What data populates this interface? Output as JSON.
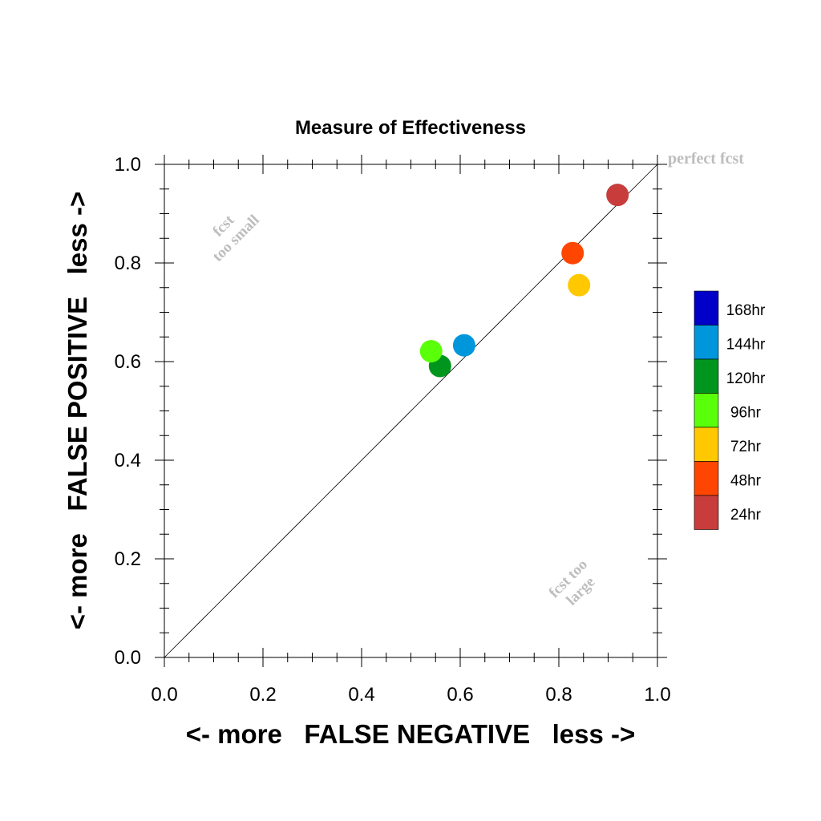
{
  "chart_data": {
    "type": "scatter",
    "title": "Measure of Effectiveness",
    "xlabel": "<- more   FALSE NEGATIVE   less ->",
    "ylabel": "<- more   FALSE POSITIVE   less ->",
    "xlim": [
      0.0,
      1.0
    ],
    "ylim": [
      0.0,
      1.0
    ],
    "xticks": [
      "0.0",
      "0.2",
      "0.4",
      "0.6",
      "0.8",
      "1.0"
    ],
    "yticks": [
      "0.0",
      "0.2",
      "0.4",
      "0.6",
      "0.8",
      "1.0"
    ],
    "grid": false,
    "reference_line": {
      "from": [
        0.0,
        0.0
      ],
      "to": [
        1.0,
        1.0
      ]
    },
    "annotations": {
      "perfect": "perfect fcst",
      "too_small": [
        "fcst",
        "too small"
      ],
      "too_large": [
        "fcst too",
        "large"
      ]
    },
    "legend_position": "right",
    "series": [
      {
        "name": "168hr",
        "color": "#0000c8",
        "points": []
      },
      {
        "name": "144hr",
        "color": "#0096dc",
        "points": [
          [
            0.608,
            0.633
          ]
        ]
      },
      {
        "name": "120hr",
        "color": "#00961e",
        "points": [
          [
            0.559,
            0.591
          ]
        ]
      },
      {
        "name": "96hr",
        "color": "#5aff0a",
        "points": [
          [
            0.541,
            0.621
          ]
        ]
      },
      {
        "name": "72hr",
        "color": "#ffc800",
        "points": [
          [
            0.841,
            0.755
          ]
        ]
      },
      {
        "name": "48hr",
        "color": "#ff4600",
        "points": [
          [
            0.828,
            0.82
          ]
        ]
      },
      {
        "name": "24hr",
        "color": "#c83c3c",
        "points": [
          [
            0.919,
            0.938
          ]
        ]
      }
    ]
  }
}
